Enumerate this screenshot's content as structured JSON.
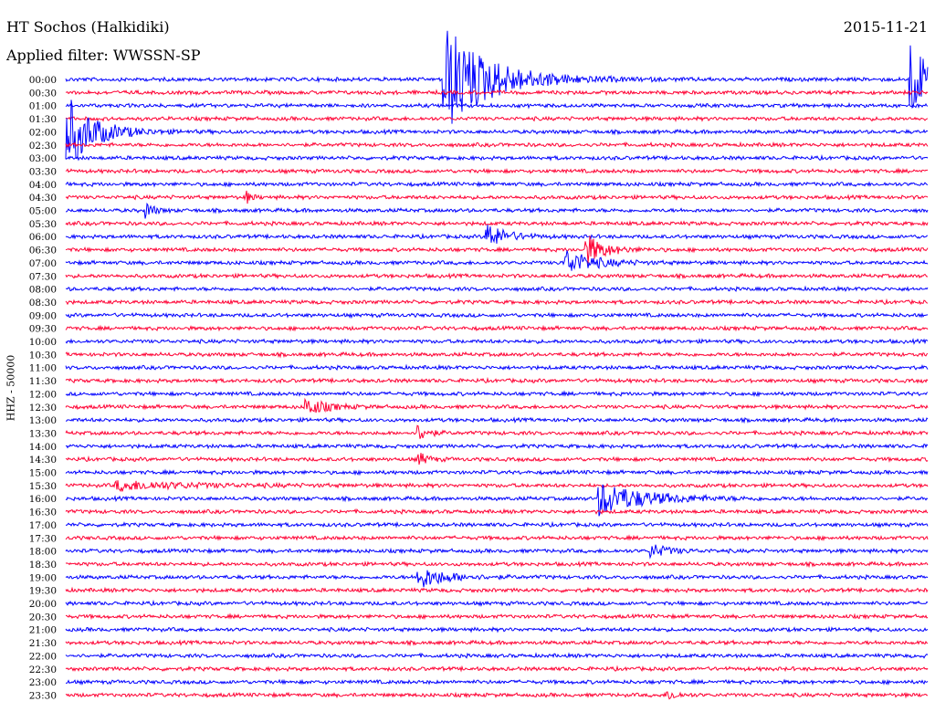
{
  "header": {
    "station": "HT Sochos (Halkidiki)",
    "date": "2015-11-21",
    "filter": "Applied filter: WWSSN-SP"
  },
  "channel_label": "HHZ - 50000",
  "colors": {
    "blue": "#0000ff",
    "red": "#ff0033"
  },
  "chart_data": {
    "type": "line",
    "title": "HT Sochos (Halkidiki)",
    "subtitle": "Applied filter: WWSSN-SP",
    "ylabel": "HHZ - 50000",
    "xlabel": "",
    "grid": false,
    "categories": [
      "00:00",
      "00:30",
      "01:00",
      "01:30",
      "02:00",
      "02:30",
      "03:00",
      "03:30",
      "04:00",
      "04:30",
      "05:00",
      "05:30",
      "06:00",
      "06:30",
      "07:00",
      "07:30",
      "08:00",
      "08:30",
      "09:00",
      "09:30",
      "10:00",
      "10:30",
      "11:00",
      "11:30",
      "12:00",
      "12:30",
      "13:00",
      "13:30",
      "14:00",
      "14:30",
      "15:00",
      "15:30",
      "16:00",
      "16:30",
      "17:00",
      "17:30",
      "18:00",
      "18:30",
      "19:00",
      "19:30",
      "20:00",
      "20:30",
      "21:00",
      "21:30",
      "22:00",
      "22:30",
      "23:00",
      "23:30"
    ],
    "series_colors": [
      "#0000ff",
      "#ff0033"
    ],
    "events": [
      {
        "row": 0,
        "x": 0.44,
        "amp": 60,
        "width": 0.05
      },
      {
        "row": 0,
        "x": 0.98,
        "amp": 45,
        "width": 0.02
      },
      {
        "row": 4,
        "x": 0.002,
        "amp": 40,
        "width": 0.03
      },
      {
        "row": 9,
        "x": 0.21,
        "amp": 6,
        "width": 0.006
      },
      {
        "row": 10,
        "x": 0.095,
        "amp": 8,
        "width": 0.008
      },
      {
        "row": 12,
        "x": 0.49,
        "amp": 14,
        "width": 0.02
      },
      {
        "row": 13,
        "x": 0.605,
        "amp": 16,
        "width": 0.02
      },
      {
        "row": 14,
        "x": 0.58,
        "amp": 14,
        "width": 0.03
      },
      {
        "row": 25,
        "x": 0.28,
        "amp": 10,
        "width": 0.02
      },
      {
        "row": 27,
        "x": 0.41,
        "amp": 9,
        "width": 0.01
      },
      {
        "row": 29,
        "x": 0.41,
        "amp": 7,
        "width": 0.01
      },
      {
        "row": 31,
        "x": 0.06,
        "amp": 5,
        "width": 0.08
      },
      {
        "row": 32,
        "x": 0.62,
        "amp": 18,
        "width": 0.05
      },
      {
        "row": 36,
        "x": 0.68,
        "amp": 7,
        "width": 0.02
      },
      {
        "row": 38,
        "x": 0.41,
        "amp": 12,
        "width": 0.03
      },
      {
        "row": 47,
        "x": 0.7,
        "amp": 5,
        "width": 0.01
      }
    ]
  }
}
